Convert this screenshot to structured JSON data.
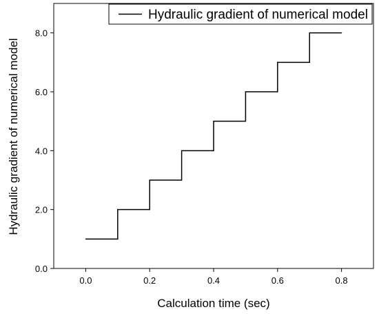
{
  "chart_data": {
    "type": "line",
    "step": true,
    "xlabel": "Calculation time (sec)",
    "ylabel": "Hydraulic gradient of numerical model",
    "xlim": [
      -0.1,
      0.9
    ],
    "ylim": [
      0.0,
      9.0
    ],
    "x_ticks": [
      0.0,
      0.2,
      0.4,
      0.6,
      0.8
    ],
    "x_tick_labels": [
      "0.0",
      "0.2",
      "0.4",
      "0.6",
      "0.8"
    ],
    "y_ticks": [
      0.0,
      2.0,
      4.0,
      6.0,
      8.0
    ],
    "y_tick_labels": [
      "0.0",
      "2.0",
      "4.0",
      "6.0",
      "8.0"
    ],
    "grid": false,
    "legend_position": "top-right",
    "series": [
      {
        "name": "Hydraulic gradient of numerical model",
        "color": "#000000",
        "points": [
          {
            "x": 0.0,
            "y": 1
          },
          {
            "x": 0.1,
            "y": 1
          },
          {
            "x": 0.1,
            "y": 2
          },
          {
            "x": 0.2,
            "y": 2
          },
          {
            "x": 0.2,
            "y": 3
          },
          {
            "x": 0.3,
            "y": 3
          },
          {
            "x": 0.3,
            "y": 4
          },
          {
            "x": 0.4,
            "y": 4
          },
          {
            "x": 0.4,
            "y": 5
          },
          {
            "x": 0.5,
            "y": 5
          },
          {
            "x": 0.5,
            "y": 6
          },
          {
            "x": 0.6,
            "y": 6
          },
          {
            "x": 0.6,
            "y": 7
          },
          {
            "x": 0.7,
            "y": 7
          },
          {
            "x": 0.7,
            "y": 8
          },
          {
            "x": 0.8,
            "y": 8
          }
        ]
      }
    ]
  }
}
